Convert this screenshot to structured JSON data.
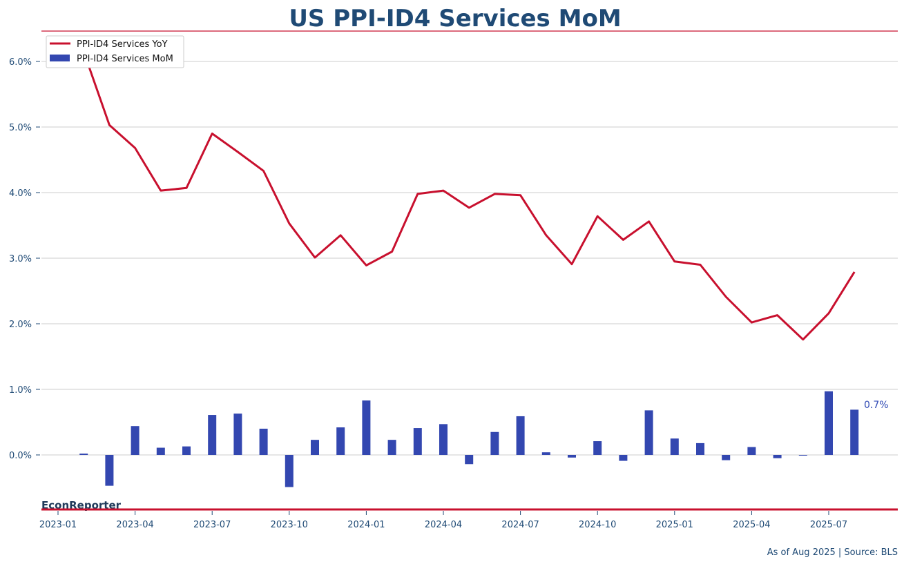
{
  "colors": {
    "title": "#1f4a75",
    "yoy_line": "#c8102e",
    "mom_bar": "#3347b0",
    "accent_rule": "#c8102e",
    "grid": "#cccccc",
    "tick_text": "#1f4a75"
  },
  "brand": "EconReporter",
  "footer": "As of Aug 2025 | Source: BLS",
  "last_value_label": "0.7%",
  "chart_data": {
    "type": "bar",
    "title": "US PPI-ID4 Services MoM",
    "xlabel": "",
    "ylabel": "",
    "ylim": [
      -0.9,
      6.4
    ],
    "yticks": [
      0,
      1,
      2,
      3,
      4,
      5,
      6
    ],
    "ytick_labels": [
      "0.0%",
      "1.0%",
      "2.0%",
      "3.0%",
      "4.0%",
      "5.0%",
      "6.0%"
    ],
    "xtick_labels": [
      "2023-01",
      "2023-04",
      "2023-07",
      "2023-10",
      "2024-01",
      "2024-04",
      "2024-07",
      "2024-10",
      "2025-01",
      "2025-04",
      "2025-07"
    ],
    "grid": true,
    "legend_position": "top-left",
    "x": [
      "2023-02",
      "2023-03",
      "2023-04",
      "2023-05",
      "2023-06",
      "2023-07",
      "2023-08",
      "2023-09",
      "2023-10",
      "2023-11",
      "2023-12",
      "2024-01",
      "2024-02",
      "2024-03",
      "2024-04",
      "2024-05",
      "2024-06",
      "2024-07",
      "2024-08",
      "2024-09",
      "2024-10",
      "2024-11",
      "2024-12",
      "2025-01",
      "2025-02",
      "2025-03",
      "2025-04",
      "2025-05",
      "2025-06",
      "2025-07",
      "2025-08"
    ],
    "series": [
      {
        "name": "PPI-ID4 Services YoY",
        "kind": "line",
        "values": [
          6.15,
          5.03,
          4.68,
          4.03,
          4.07,
          4.9,
          4.62,
          4.33,
          3.53,
          3.01,
          3.35,
          2.89,
          3.1,
          3.98,
          4.03,
          3.77,
          3.98,
          3.96,
          3.35,
          2.91,
          3.64,
          3.28,
          3.56,
          2.95,
          2.9,
          2.41,
          2.02,
          2.13,
          1.76,
          2.16,
          2.79
        ]
      },
      {
        "name": "PPI-ID4 Services MoM",
        "kind": "bar",
        "values": [
          0.02,
          -0.47,
          0.44,
          0.11,
          0.13,
          0.61,
          0.63,
          0.4,
          -0.49,
          0.23,
          0.42,
          0.83,
          0.23,
          0.41,
          0.47,
          -0.14,
          0.35,
          0.59,
          0.04,
          -0.04,
          0.21,
          -0.09,
          0.68,
          0.25,
          0.18,
          -0.08,
          0.12,
          -0.05,
          -0.01,
          0.97,
          0.69
        ]
      }
    ]
  }
}
